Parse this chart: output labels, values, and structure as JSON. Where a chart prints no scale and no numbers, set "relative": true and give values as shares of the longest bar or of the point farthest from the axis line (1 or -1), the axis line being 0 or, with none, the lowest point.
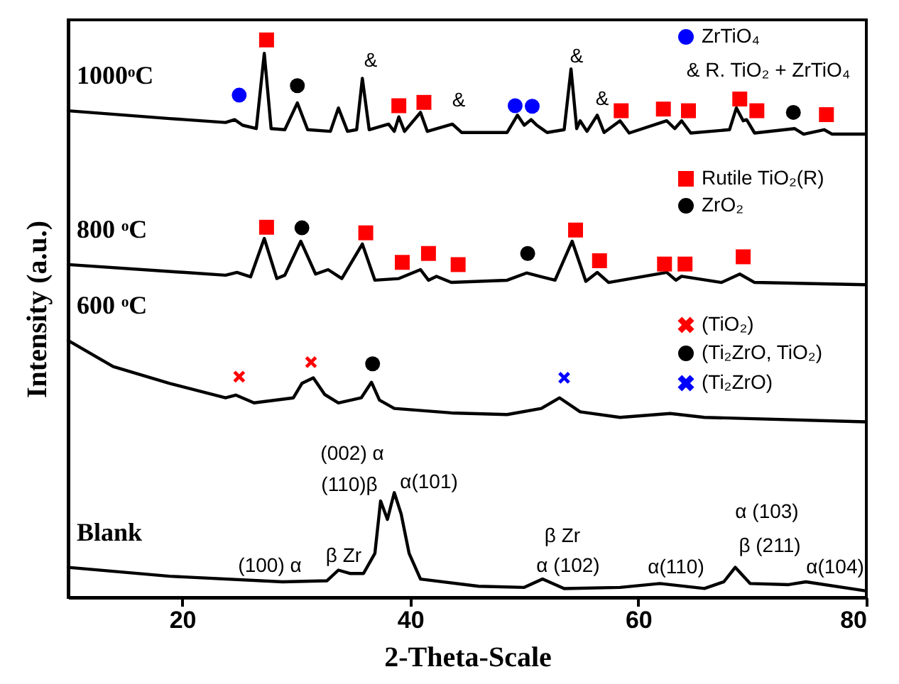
{
  "chart_data": {
    "type": "line",
    "xlabel": "2-Theta-Scale",
    "ylabel": "Intensity (a.u.)",
    "relative": true,
    "xlim": [
      10,
      80
    ],
    "xticks": [
      20,
      40,
      60,
      80
    ],
    "tick_labels": "x",
    "legend": "top right",
    "line_style": "solid",
    "series": [
      {
        "name": "1000ᵒC",
        "color": "#000000",
        "x": [
          10.0,
          18.9,
          23.8,
          24.6,
          25.3,
          26.5,
          27.2,
          27.8,
          29.0,
          30.1,
          31.0,
          33.0,
          33.7,
          34.5,
          35.3,
          35.8,
          36.4,
          38.1,
          38.6,
          39.0,
          39.5,
          40.9,
          41.5,
          43.7,
          44.5,
          48.5,
          49.4,
          50.0,
          50.6,
          51.1,
          52.0,
          53.5,
          54.1,
          54.6,
          54.9,
          55.5,
          56.4,
          57.0,
          58.4,
          59.2,
          62.5,
          63.2,
          63.8,
          64.6,
          68.0,
          68.6,
          69.2,
          69.5,
          70.2,
          73.7,
          74.5,
          76.3,
          77.0,
          79.9
        ],
        "values": [
          0.873,
          0.859,
          0.852,
          0.857,
          0.847,
          0.841,
          0.976,
          0.841,
          0.839,
          0.887,
          0.839,
          0.836,
          0.878,
          0.836,
          0.839,
          0.931,
          0.839,
          0.849,
          0.836,
          0.862,
          0.836,
          0.87,
          0.836,
          0.849,
          0.834,
          0.834,
          0.865,
          0.847,
          0.857,
          0.847,
          0.834,
          0.839,
          0.948,
          0.841,
          0.855,
          0.836,
          0.865,
          0.834,
          0.855,
          0.833,
          0.855,
          0.841,
          0.855,
          0.833,
          0.839,
          0.878,
          0.855,
          0.857,
          0.833,
          0.841,
          0.831,
          0.839,
          0.831,
          0.831
        ]
      },
      {
        "name": "800 ᵒC",
        "color": "#000000",
        "x": [
          10.0,
          23.8,
          24.8,
          26.0,
          27.2,
          28.3,
          29.0,
          30.4,
          31.7,
          32.8,
          34.0,
          35.8,
          36.9,
          39.0,
          40.9,
          41.6,
          42.3,
          43.6,
          48.5,
          50.2,
          52.7,
          54.2,
          55.4,
          56.4,
          57.4,
          62.5,
          63.3,
          63.8,
          67.3,
          68.9,
          70.2,
          79.9
        ],
        "values": [
          0.597,
          0.578,
          0.583,
          0.575,
          0.644,
          0.572,
          0.578,
          0.639,
          0.58,
          0.588,
          0.572,
          0.634,
          0.569,
          0.572,
          0.588,
          0.569,
          0.576,
          0.565,
          0.569,
          0.582,
          0.569,
          0.639,
          0.567,
          0.583,
          0.565,
          0.583,
          0.569,
          0.576,
          0.565,
          0.58,
          0.565,
          0.561
        ]
      },
      {
        "name": "600 ᵒC",
        "color": "#000000",
        "x": [
          10.0,
          13.95,
          18.9,
          23.8,
          24.7,
          26.3,
          29.75,
          30.5,
          31.5,
          32.5,
          33.7,
          35.7,
          36.6,
          37.3,
          38.6,
          43.6,
          48.5,
          51.5,
          53.1,
          54.9,
          58.4,
          62.8,
          65.8,
          79.9
        ],
        "values": [
          0.461,
          0.414,
          0.384,
          0.358,
          0.363,
          0.349,
          0.358,
          0.384,
          0.394,
          0.364,
          0.349,
          0.358,
          0.386,
          0.354,
          0.339,
          0.331,
          0.328,
          0.339,
          0.358,
          0.333,
          0.323,
          0.33,
          0.323,
          0.315
        ]
      },
      {
        "name": "Blank",
        "color": "#000000",
        "x": [
          10.0,
          18.9,
          28.8,
          32.7,
          33.7,
          34.7,
          35.9,
          36.9,
          37.4,
          38.0,
          38.6,
          39.2,
          39.9,
          40.9,
          46.0,
          50.0,
          51.6,
          53.5,
          58.4,
          61.9,
          65.8,
          67.5,
          68.5,
          69.8,
          73.2,
          74.7,
          79.9
        ],
        "values": [
          0.054,
          0.038,
          0.028,
          0.03,
          0.049,
          0.043,
          0.043,
          0.079,
          0.173,
          0.14,
          0.188,
          0.15,
          0.079,
          0.033,
          0.02,
          0.018,
          0.033,
          0.016,
          0.018,
          0.025,
          0.016,
          0.028,
          0.054,
          0.025,
          0.023,
          0.028,
          0.012
        ]
      },
      {
        "name": "ZrTiO₄",
        "type": "scatter",
        "marker": "circle",
        "color": "#0000ff",
        "x": [
          25.0,
          49.2,
          50.7
        ],
        "values": [
          0.901,
          0.882,
          0.881
        ]
      },
      {
        "name": "Rutile TiO₂(R)",
        "type": "scatter",
        "marker": "square",
        "color": "#ff0000",
        "x": [
          27.4,
          39.0,
          41.2,
          58.5,
          62.2,
          64.4,
          68.9,
          70.4,
          76.5,
          27.4,
          36.1,
          39.3,
          41.6,
          44.2,
          54.5,
          56.6,
          62.3,
          64.1,
          69.2
        ],
        "values": [
          1,
          0.882,
          0.888,
          0.873,
          0.876,
          0.873,
          0.894,
          0.873,
          0.866,
          0.664,
          0.654,
          0.601,
          0.617,
          0.597,
          0.659,
          0.604,
          0.598,
          0.598,
          0.611
        ]
      },
      {
        "name": "ZrO₂",
        "type": "scatter",
        "marker": "circle",
        "color": "#000000",
        "x": [
          30.1,
          73.6,
          30.5,
          50.3
        ],
        "values": [
          0.918,
          0.87,
          0.663,
          0.617
        ]
      },
      {
        "name": "(TiO₂)",
        "type": "scatter",
        "marker": "cross",
        "color": "#ff0000",
        "x": [
          25.0,
          31.3
        ],
        "values": [
          0.396,
          0.422
        ]
      },
      {
        "name": "(Ti₂ZrO, TiO₂)",
        "type": "scatter",
        "marker": "circle",
        "color": "#000000",
        "x": [
          36.7
        ],
        "values": [
          0.419
        ]
      },
      {
        "name": "(Ti₂ZrO)",
        "type": "scatter",
        "marker": "cross",
        "color": "#0000ff",
        "x": [
          53.5
        ],
        "values": [
          0.394
        ]
      }
    ],
    "annotations": [
      "& R. TiO₂ + ZrTiO₄",
      "&",
      "&",
      "&",
      "&",
      "(100) α",
      "β Zr",
      "(002) α",
      "(110)β",
      "α(101)",
      "β Zr",
      "α (102)",
      "α(110)",
      "α (103)",
      "β (211)",
      "α(104)"
    ]
  }
}
